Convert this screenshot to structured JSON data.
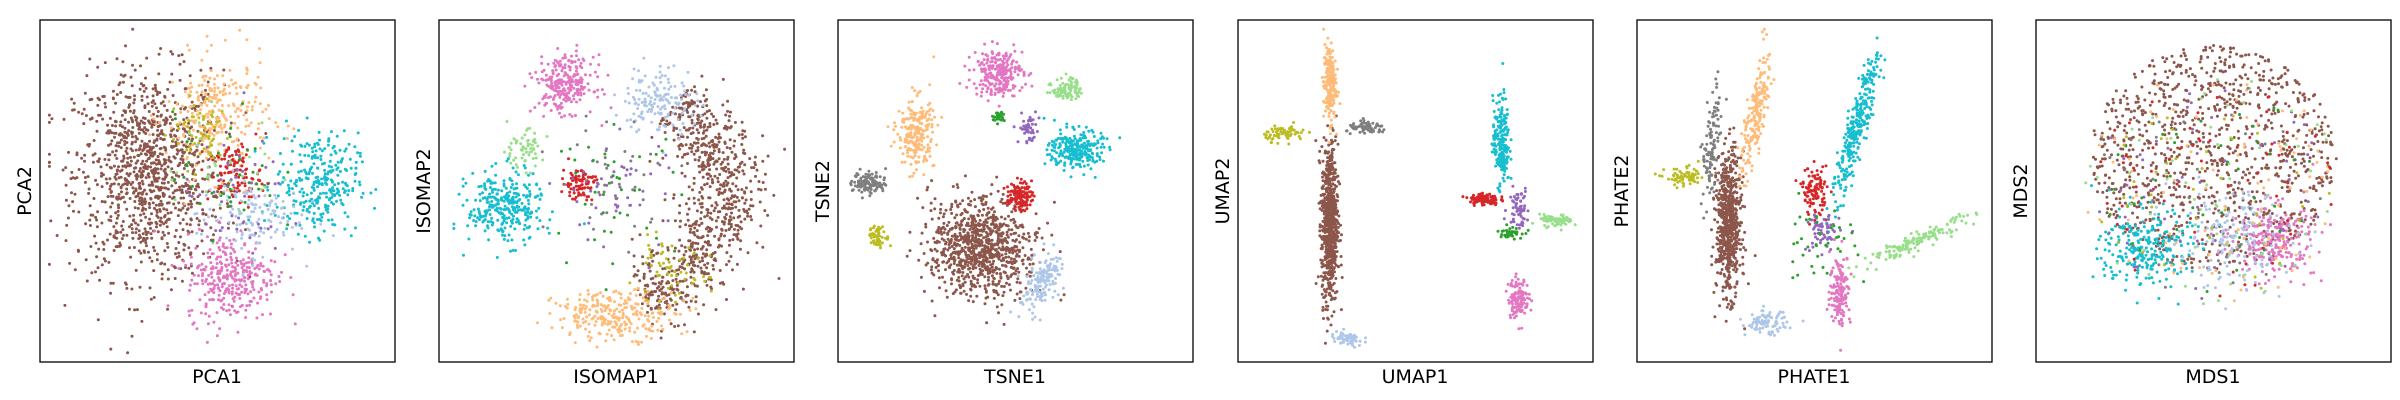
{
  "figure": {
    "panels": [
      {
        "xlabel": "PCA1",
        "ylabel": "PCA2"
      },
      {
        "xlabel": "ISOMAP1",
        "ylabel": "ISOMAP2"
      },
      {
        "xlabel": "TSNE1",
        "ylabel": "TSNE2"
      },
      {
        "xlabel": "UMAP1",
        "ylabel": "UMAP2"
      },
      {
        "xlabel": "PHATE1",
        "ylabel": "PHATE2"
      },
      {
        "xlabel": "MDS1",
        "ylabel": "MDS2"
      }
    ]
  },
  "chart_data": [
    {
      "type": "scatter",
      "title": "",
      "xlabel": "PCA1",
      "ylabel": "PCA2",
      "xlim": [
        -1,
        1
      ],
      "ylim": [
        -1,
        1
      ],
      "ticks": false,
      "grid": false,
      "legend": "none",
      "series": [
        {
          "color": "#8c564b",
          "center": [
            -0.4,
            0.1
          ],
          "spread": [
            0.36,
            0.52
          ],
          "count": 1100
        },
        {
          "color": "#ffbb78",
          "center": [
            0.0,
            0.45
          ],
          "spread": [
            0.25,
            0.3
          ],
          "count": 260
        },
        {
          "color": "#17becf",
          "center": [
            0.58,
            0.05
          ],
          "spread": [
            0.2,
            0.25
          ],
          "count": 300
        },
        {
          "color": "#e377c2",
          "center": [
            0.08,
            -0.52
          ],
          "spread": [
            0.22,
            0.22
          ],
          "count": 320
        },
        {
          "color": "#d62728",
          "center": [
            0.1,
            0.1
          ],
          "spread": [
            0.13,
            0.15
          ],
          "count": 110
        },
        {
          "color": "#aec7e8",
          "center": [
            0.18,
            -0.15
          ],
          "spread": [
            0.25,
            0.2
          ],
          "count": 130
        },
        {
          "color": "#bcbd22",
          "center": [
            -0.1,
            0.35
          ],
          "spread": [
            0.15,
            0.18
          ],
          "count": 60
        },
        {
          "color": "#9467bd",
          "center": [
            0.1,
            -0.05
          ],
          "spread": [
            0.25,
            0.3
          ],
          "count": 50
        },
        {
          "color": "#2ca02c",
          "center": [
            0.05,
            0.1
          ],
          "spread": [
            0.25,
            0.3
          ],
          "count": 40
        },
        {
          "color": "#98df8a",
          "center": [
            0.0,
            0.15
          ],
          "spread": [
            0.3,
            0.3
          ],
          "count": 30
        }
      ]
    },
    {
      "type": "scatter",
      "title": "",
      "xlabel": "ISOMAP1",
      "ylabel": "ISOMAP2",
      "xlim": [
        -1,
        1
      ],
      "ylim": [
        -1,
        1
      ],
      "ticks": false,
      "grid": false,
      "legend": "none",
      "series": [
        {
          "color": "#8c564b",
          "arc": {
            "center": [
              -0.1,
              0.0
            ],
            "radius": 0.72,
            "from": 50,
            "to": -70,
            "width": 0.12
          },
          "count": 800
        },
        {
          "color": "#e377c2",
          "center": [
            -0.3,
            0.65
          ],
          "spread": [
            0.14,
            0.14
          ],
          "count": 260
        },
        {
          "color": "#17becf",
          "center": [
            -0.65,
            -0.1
          ],
          "spread": [
            0.18,
            0.18
          ],
          "count": 300
        },
        {
          "color": "#ffbb78",
          "center": [
            0.0,
            -0.75
          ],
          "spread": [
            0.3,
            0.12
          ],
          "count": 260
        },
        {
          "color": "#aec7e8",
          "center": [
            0.25,
            0.55
          ],
          "spread": [
            0.18,
            0.18
          ],
          "count": 150
        },
        {
          "color": "#d62728",
          "center": [
            -0.22,
            0.05
          ],
          "spread": [
            0.08,
            0.08
          ],
          "count": 90
        },
        {
          "color": "#98df8a",
          "center": [
            -0.55,
            0.25
          ],
          "spread": [
            0.1,
            0.1
          ],
          "count": 60
        },
        {
          "color": "#bcbd22",
          "center": [
            0.3,
            -0.5
          ],
          "spread": [
            0.2,
            0.15
          ],
          "count": 60
        },
        {
          "color": "#9467bd",
          "center": [
            0.0,
            0.0
          ],
          "spread": [
            0.3,
            0.3
          ],
          "count": 50
        },
        {
          "color": "#2ca02c",
          "center": [
            0.0,
            0.0
          ],
          "spread": [
            0.3,
            0.3
          ],
          "count": 40
        },
        {
          "color": "#7f7f7f",
          "center": [
            0.0,
            0.1
          ],
          "spread": [
            0.3,
            0.3
          ],
          "count": 40
        }
      ]
    },
    {
      "type": "scatter",
      "title": "",
      "xlabel": "TSNE1",
      "ylabel": "TSNE2",
      "xlim": [
        -1,
        1
      ],
      "ylim": [
        -1,
        1
      ],
      "ticks": false,
      "grid": false,
      "legend": "none",
      "series": [
        {
          "color": "#8c564b",
          "center": [
            -0.2,
            -0.35
          ],
          "spread": [
            0.26,
            0.24
          ],
          "count": 900,
          "rotate": -35
        },
        {
          "color": "#e377c2",
          "center": [
            -0.1,
            0.72
          ],
          "spread": [
            0.12,
            0.12
          ],
          "count": 250
        },
        {
          "color": "#17becf",
          "center": [
            0.35,
            0.25
          ],
          "spread": [
            0.13,
            0.1
          ],
          "count": 260
        },
        {
          "color": "#ffbb78",
          "center": [
            -0.58,
            0.35
          ],
          "spread": [
            0.09,
            0.18
          ],
          "count": 220
        },
        {
          "color": "#aec7e8",
          "center": [
            0.15,
            -0.55
          ],
          "spread": [
            0.08,
            0.15
          ],
          "count": 160,
          "rotate": -30
        },
        {
          "color": "#d62728",
          "center": [
            0.02,
            -0.03
          ],
          "spread": [
            0.06,
            0.07
          ],
          "count": 120
        },
        {
          "color": "#7f7f7f",
          "center": [
            -0.85,
            0.05
          ],
          "spread": [
            0.08,
            0.06
          ],
          "count": 110
        },
        {
          "color": "#98df8a",
          "center": [
            0.3,
            0.62
          ],
          "spread": [
            0.07,
            0.06
          ],
          "count": 90
        },
        {
          "color": "#bcbd22",
          "center": [
            -0.8,
            -0.28
          ],
          "spread": [
            0.05,
            0.05
          ],
          "count": 60
        },
        {
          "color": "#9467bd",
          "center": [
            0.08,
            0.38
          ],
          "spread": [
            0.05,
            0.08
          ],
          "count": 50
        },
        {
          "color": "#2ca02c",
          "center": [
            -0.1,
            0.45
          ],
          "spread": [
            0.03,
            0.03
          ],
          "count": 30
        }
      ]
    },
    {
      "type": "scatter",
      "title": "",
      "xlabel": "UMAP1",
      "ylabel": "UMAP2",
      "xlim": [
        -1,
        1
      ],
      "ylim": [
        -1,
        1
      ],
      "ticks": false,
      "grid": false,
      "legend": "none",
      "series": [
        {
          "color": "#8c564b",
          "center": [
            -0.5,
            -0.2
          ],
          "spread": [
            0.04,
            0.4
          ],
          "count": 700
        },
        {
          "color": "#ffbb78",
          "center": [
            -0.5,
            0.65
          ],
          "spread": [
            0.03,
            0.2
          ],
          "count": 200
        },
        {
          "color": "#17becf",
          "center": [
            0.5,
            0.3
          ],
          "spread": [
            0.04,
            0.22
          ],
          "count": 200
        },
        {
          "color": "#e377c2",
          "center": [
            0.6,
            -0.65
          ],
          "spread": [
            0.05,
            0.1
          ],
          "count": 130
        },
        {
          "color": "#d62728",
          "center": [
            0.4,
            -0.05
          ],
          "spread": [
            0.07,
            0.03
          ],
          "count": 110
        },
        {
          "color": "#98df8a",
          "center": [
            0.82,
            -0.18
          ],
          "spread": [
            0.08,
            0.03
          ],
          "count": 70
        },
        {
          "color": "#bcbd22",
          "center": [
            -0.76,
            0.35
          ],
          "spread": [
            0.1,
            0.04
          ],
          "count": 70
        },
        {
          "color": "#7f7f7f",
          "center": [
            -0.28,
            0.38
          ],
          "spread": [
            0.1,
            0.03
          ],
          "count": 70
        },
        {
          "color": "#aec7e8",
          "center": [
            -0.4,
            -0.9
          ],
          "spread": [
            0.08,
            0.04
          ],
          "count": 60
        },
        {
          "color": "#9467bd",
          "center": [
            0.6,
            -0.1
          ],
          "spread": [
            0.05,
            0.1
          ],
          "count": 60
        },
        {
          "color": "#2ca02c",
          "center": [
            0.55,
            -0.25
          ],
          "spread": [
            0.06,
            0.03
          ],
          "count": 40
        }
      ]
    },
    {
      "type": "scatter",
      "title": "",
      "xlabel": "PHATE1",
      "ylabel": "PHATE2",
      "xlim": [
        -1,
        1
      ],
      "ylim": [
        -1,
        1
      ],
      "ticks": false,
      "grid": false,
      "legend": "none",
      "series": [
        {
          "color": "#8c564b",
          "center": [
            -0.5,
            -0.2
          ],
          "spread": [
            0.06,
            0.35
          ],
          "count": 650
        },
        {
          "color": "#17becf",
          "center": [
            0.25,
            0.4
          ],
          "spread": [
            0.05,
            0.38
          ],
          "count": 300,
          "rotate": -15
        },
        {
          "color": "#ffbb78",
          "center": [
            -0.35,
            0.45
          ],
          "spread": [
            0.05,
            0.3
          ],
          "count": 200,
          "rotate": -10
        },
        {
          "color": "#98df8a",
          "center": [
            0.6,
            -0.3
          ],
          "spread": [
            0.3,
            0.04
          ],
          "count": 140,
          "rotate": 25
        },
        {
          "color": "#e377c2",
          "center": [
            0.15,
            -0.6
          ],
          "spread": [
            0.05,
            0.18
          ],
          "count": 150
        },
        {
          "color": "#7f7f7f",
          "center": [
            -0.6,
            0.25
          ],
          "spread": [
            0.04,
            0.3
          ],
          "count": 110,
          "rotate": -5
        },
        {
          "color": "#d62728",
          "center": [
            0.0,
            0.0
          ],
          "spread": [
            0.06,
            0.12
          ],
          "count": 110
        },
        {
          "color": "#aec7e8",
          "center": [
            -0.28,
            -0.8
          ],
          "spread": [
            0.1,
            0.06
          ],
          "count": 90
        },
        {
          "color": "#bcbd22",
          "center": [
            -0.75,
            0.08
          ],
          "spread": [
            0.1,
            0.05
          ],
          "count": 70
        },
        {
          "color": "#9467bd",
          "center": [
            0.05,
            -0.25
          ],
          "spread": [
            0.08,
            0.1
          ],
          "count": 60
        },
        {
          "color": "#2ca02c",
          "center": [
            0.0,
            -0.3
          ],
          "spread": [
            0.2,
            0.2
          ],
          "count": 40
        }
      ]
    },
    {
      "type": "scatter",
      "title": "",
      "xlabel": "MDS1",
      "ylabel": "MDS2",
      "xlim": [
        -1,
        1
      ],
      "ylim": [
        -1,
        1
      ],
      "ticks": false,
      "grid": false,
      "legend": "none",
      "series": [
        {
          "color": "#8c564b",
          "disk": {
            "center": [
              0.0,
              0.2
            ],
            "radius": 0.72
          },
          "count": 1000
        },
        {
          "color": "#17becf",
          "center": [
            -0.4,
            -0.35
          ],
          "spread": [
            0.22,
            0.2
          ],
          "count": 260
        },
        {
          "color": "#e377c2",
          "center": [
            0.35,
            -0.3
          ],
          "spread": [
            0.2,
            0.18
          ],
          "count": 240
        },
        {
          "color": "#aec7e8",
          "center": [
            0.1,
            -0.3
          ],
          "spread": [
            0.3,
            0.25
          ],
          "count": 160
        },
        {
          "color": "#ffbb78",
          "disk": {
            "center": [
              0.0,
              0.0
            ],
            "radius": 0.75
          },
          "count": 90
        },
        {
          "color": "#d62728",
          "disk": {
            "center": [
              0.0,
              0.0
            ],
            "radius": 0.7
          },
          "count": 60
        },
        {
          "color": "#98df8a",
          "disk": {
            "center": [
              0.0,
              0.0
            ],
            "radius": 0.75
          },
          "count": 60
        },
        {
          "color": "#9467bd",
          "disk": {
            "center": [
              0.0,
              0.0
            ],
            "radius": 0.7
          },
          "count": 50
        },
        {
          "color": "#2ca02c",
          "disk": {
            "center": [
              0.0,
              0.0
            ],
            "radius": 0.7
          },
          "count": 40
        },
        {
          "color": "#7f7f7f",
          "disk": {
            "center": [
              0.0,
              0.0
            ],
            "radius": 0.7
          },
          "count": 40
        },
        {
          "color": "#bcbd22",
          "disk": {
            "center": [
              0.0,
              0.0
            ],
            "radius": 0.7
          },
          "count": 40
        }
      ]
    }
  ]
}
